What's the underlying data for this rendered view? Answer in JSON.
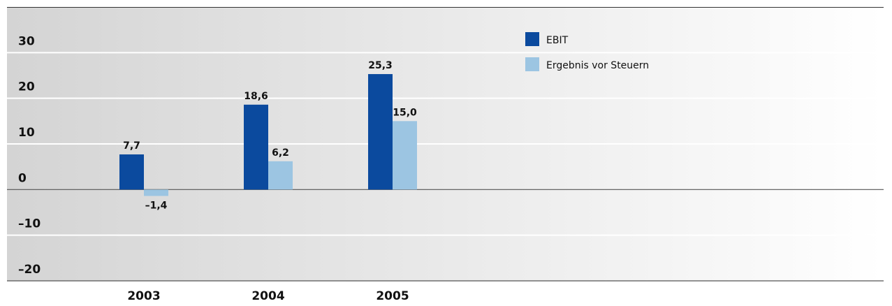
{
  "chart_data": {
    "type": "bar",
    "categories": [
      "2003",
      "2004",
      "2005"
    ],
    "series": [
      {
        "name": "EBIT",
        "color": "#0b4a9e",
        "values": [
          7.7,
          18.6,
          25.3
        ],
        "value_labels": [
          "7,7",
          "18,6",
          "25,3"
        ]
      },
      {
        "name": "Ergebnis vor Steuern",
        "color": "#9cc5e2",
        "values": [
          -1.4,
          6.2,
          15.0
        ],
        "value_labels": [
          "–1,4",
          "6,2",
          "15,0"
        ]
      }
    ],
    "ylim": [
      -20,
      40
    ],
    "yticks": [
      {
        "value": -20,
        "label": "–20"
      },
      {
        "value": -10,
        "label": "–10"
      },
      0,
      10,
      20,
      30
    ],
    "grid": true
  }
}
